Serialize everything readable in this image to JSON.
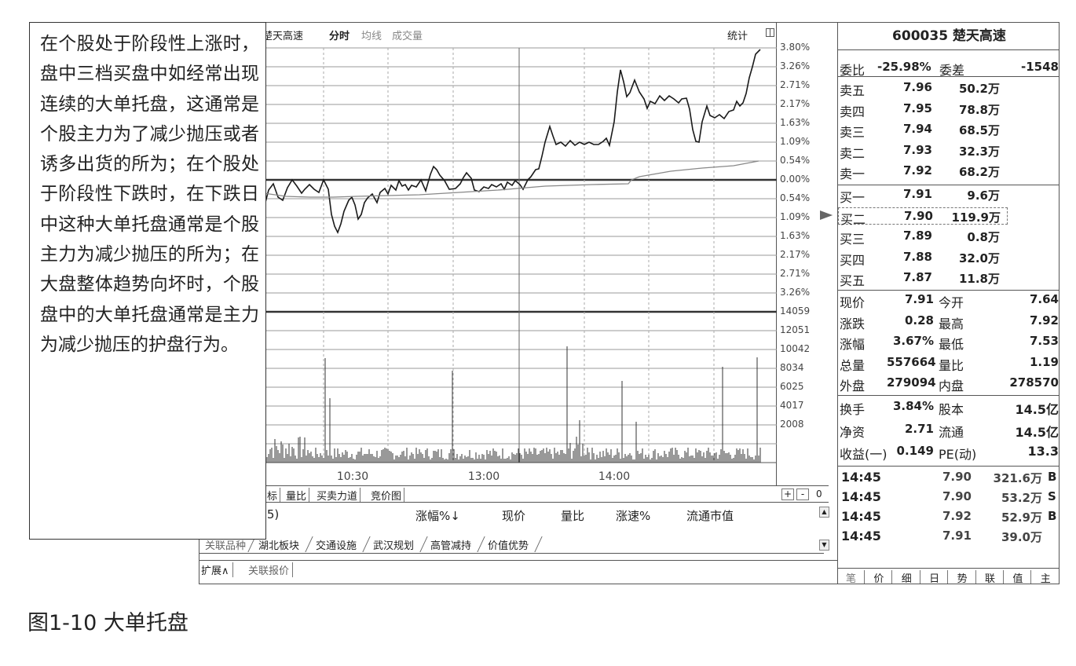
{
  "chart": {
    "stock_name": "楚天高速",
    "tabs": [
      "分时",
      "均线",
      "成交量"
    ],
    "stat_label": "统计",
    "pct_axis": [
      "3.80%",
      "3.26%",
      "2.71%",
      "2.17%",
      "1.63%",
      "1.09%",
      "0.54%",
      "0.00%",
      "0.54%",
      "1.09%",
      "1.63%",
      "2.17%",
      "2.71%",
      "3.26%"
    ],
    "volume_axis": [
      "14059",
      "12051",
      "10042",
      "8034",
      "6025",
      "4017",
      "2008"
    ],
    "time_labels": [
      "10:30",
      "13:00",
      "14:00"
    ],
    "line_color": "#1a1a1a",
    "avg_color": "#888888"
  },
  "indicator_tabs": [
    "标",
    "量比",
    "买卖力道",
    "竞价图"
  ],
  "zoom": {
    "plus": "+",
    "minus": "-",
    "value": "0"
  },
  "list_header": {
    "count": "(5)",
    "zhangfu": "涨幅%↓",
    "xianjia": "现价",
    "liangbi": "量比",
    "zhangsu": "涨速%",
    "liutong": "流通市值"
  },
  "sheet_tabs": [
    "关联品种",
    "湖北板块",
    "交通设施",
    "武汉规划",
    "高管减持",
    "价值优势"
  ],
  "bottom_bar": {
    "expand": "扩展∧",
    "related_quote": "关联报价"
  },
  "quote": {
    "title": "600035 楚天高速",
    "weibi_label": "委比",
    "weibi_value": "-25.98%",
    "weicha_label": "委差",
    "weicha_value": "-1548",
    "sell": [
      {
        "label": "卖五",
        "price": "7.96",
        "volume": "50.2万"
      },
      {
        "label": "卖四",
        "price": "7.95",
        "volume": "78.8万"
      },
      {
        "label": "卖三",
        "price": "7.94",
        "volume": "68.5万"
      },
      {
        "label": "卖二",
        "price": "7.93",
        "volume": "32.3万"
      },
      {
        "label": "卖一",
        "price": "7.92",
        "volume": "68.2万"
      }
    ],
    "buy": [
      {
        "label": "买一",
        "price": "7.91",
        "volume": "9.6万"
      },
      {
        "label": "买二",
        "price": "7.90",
        "volume": "119.9万"
      },
      {
        "label": "买三",
        "price": "7.89",
        "volume": "0.8万"
      },
      {
        "label": "买四",
        "price": "7.88",
        "volume": "32.0万"
      },
      {
        "label": "买五",
        "price": "7.87",
        "volume": "11.8万"
      }
    ],
    "stats": [
      {
        "l1": "现价",
        "v1": "7.91",
        "l2": "今开",
        "v2": "7.64"
      },
      {
        "l1": "涨跌",
        "v1": "0.28",
        "l2": "最高",
        "v2": "7.92"
      },
      {
        "l1": "涨幅",
        "v1": "3.67%",
        "l2": "最低",
        "v2": "7.53"
      },
      {
        "l1": "总量",
        "v1": "557664",
        "l2": "量比",
        "v2": "1.19"
      },
      {
        "l1": "外盘",
        "v1": "279094",
        "l2": "内盘",
        "v2": "278570"
      }
    ],
    "stats2": [
      {
        "l1": "换手",
        "v1": "3.84%",
        "l2": "股本",
        "v2": "14.5亿"
      },
      {
        "l1": "净资",
        "v1": "2.71",
        "l2": "流通",
        "v2": "14.5亿"
      },
      {
        "l1": "收益(一)",
        "v1": "0.149",
        "l2": "PE(动)",
        "v2": "13.3"
      }
    ],
    "ticks": [
      {
        "time": "14:45",
        "price": "7.90",
        "volume": "321.6万",
        "dir": "B"
      },
      {
        "time": "14:45",
        "price": "7.90",
        "volume": "53.2万",
        "dir": "S"
      },
      {
        "time": "14:45",
        "price": "7.92",
        "volume": "52.9万",
        "dir": "B"
      },
      {
        "time": "14:45",
        "price": "7.91",
        "volume": "39.0万",
        "dir": ""
      }
    ],
    "panel_tabs": [
      "笔",
      "价",
      "细",
      "日",
      "势",
      "联",
      "值",
      "主"
    ]
  },
  "callout": "在个股处于阶段性上涨时，盘中三档买盘中如经常出现连续的大单托盘，这通常是个股主力为了减少抛压或者诱多出货的所为；在个股处于阶段性下跌时，在下跌日中这种大单托盘通常是个股主力为减少抛压的所为；在大盘整体趋势向坏时，个股盘中的大单托盘通常是主力为减少抛压的护盘行为。",
  "caption": "图1-10 大单托盘"
}
